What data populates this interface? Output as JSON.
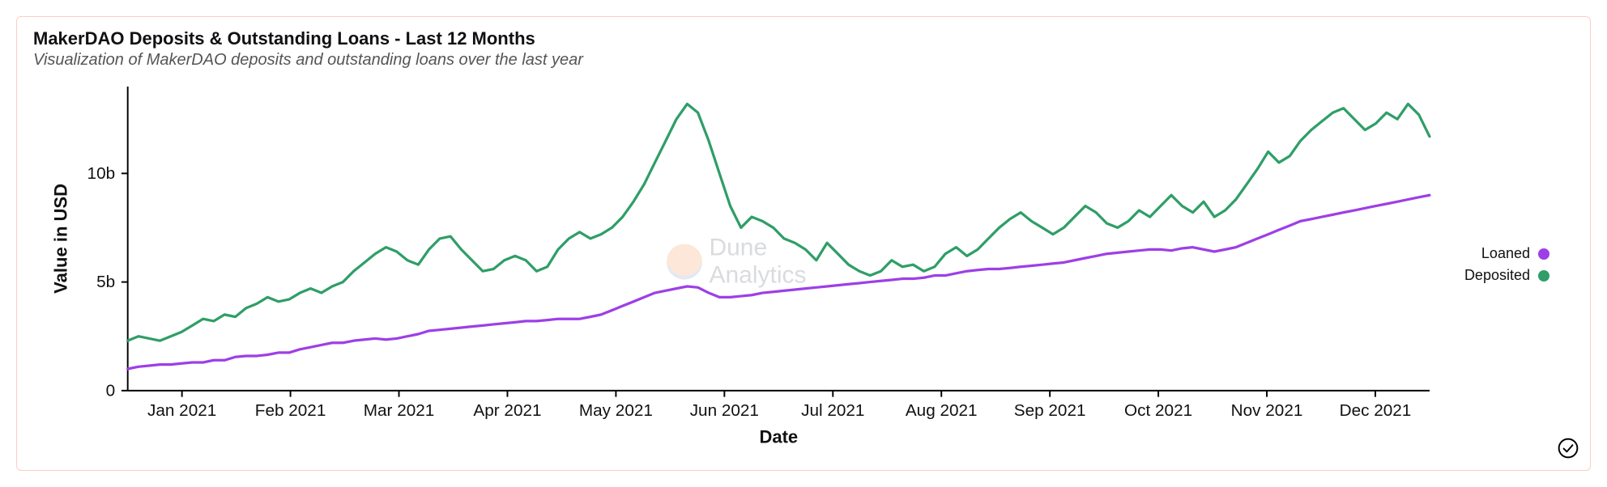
{
  "card": {
    "title": "MakerDAO Deposits & Outstanding Loans - Last 12 Months",
    "subtitle": "Visualization of MakerDAO deposits and outstanding loans over the last year",
    "border_color": "#fecdc6",
    "background_color": "#ffffff"
  },
  "watermark": {
    "text_line1": "Dune",
    "text_line2": "Analytics",
    "logo_top_color": "#f4a26a",
    "logo_bottom_color": "#8ea8d8"
  },
  "chart": {
    "type": "line",
    "x_label": "Date",
    "y_label": "Value in USD",
    "title_fontsize": 22,
    "subtitle_fontsize": 20,
    "label_fontsize": 17,
    "tick_fontsize": 16,
    "background_color": "#ffffff",
    "axis_color": "#000000",
    "line_width": 2.5,
    "y_axis": {
      "min": 0,
      "max": 14,
      "ticks": [
        0,
        5,
        10
      ],
      "tick_labels": [
        "0",
        "5b",
        "10b"
      ]
    },
    "x_axis": {
      "tick_positions": [
        0.5,
        1.5,
        2.5,
        3.5,
        4.5,
        5.5,
        6.5,
        7.5,
        8.5,
        9.5,
        10.5,
        11.5
      ],
      "tick_labels": [
        "Jan 2021",
        "Feb 2021",
        "Mar 2021",
        "Apr 2021",
        "May 2021",
        "Jun 2021",
        "Jul 2021",
        "Aug 2021",
        "Sep 2021",
        "Oct 2021",
        "Nov 2021",
        "Dec 2021"
      ]
    },
    "series": [
      {
        "name": "Loaned",
        "color": "#9d3fe7",
        "data": [
          1.0,
          1.1,
          1.15,
          1.2,
          1.2,
          1.25,
          1.3,
          1.3,
          1.4,
          1.4,
          1.55,
          1.6,
          1.6,
          1.65,
          1.75,
          1.75,
          1.9,
          2.0,
          2.1,
          2.2,
          2.2,
          2.3,
          2.35,
          2.4,
          2.35,
          2.4,
          2.5,
          2.6,
          2.75,
          2.8,
          2.85,
          2.9,
          2.95,
          3.0,
          3.05,
          3.1,
          3.15,
          3.2,
          3.2,
          3.25,
          3.3,
          3.3,
          3.3,
          3.4,
          3.5,
          3.7,
          3.9,
          4.1,
          4.3,
          4.5,
          4.6,
          4.7,
          4.8,
          4.75,
          4.5,
          4.3,
          4.3,
          4.35,
          4.4,
          4.5,
          4.55,
          4.6,
          4.65,
          4.7,
          4.75,
          4.8,
          4.85,
          4.9,
          4.95,
          5.0,
          5.05,
          5.1,
          5.15,
          5.15,
          5.2,
          5.3,
          5.3,
          5.4,
          5.5,
          5.55,
          5.6,
          5.6,
          5.65,
          5.7,
          5.75,
          5.8,
          5.85,
          5.9,
          6.0,
          6.1,
          6.2,
          6.3,
          6.35,
          6.4,
          6.45,
          6.5,
          6.5,
          6.45,
          6.55,
          6.6,
          6.5,
          6.4,
          6.5,
          6.6,
          6.8,
          7.0,
          7.2,
          7.4,
          7.6,
          7.8,
          7.9,
          8.0,
          8.1,
          8.2,
          8.3,
          8.4,
          8.5,
          8.6,
          8.7,
          8.8,
          8.9,
          9.0
        ]
      },
      {
        "name": "Deposited",
        "color": "#2f9e67",
        "data": [
          2.3,
          2.5,
          2.4,
          2.3,
          2.5,
          2.7,
          3.0,
          3.3,
          3.2,
          3.5,
          3.4,
          3.8,
          4.0,
          4.3,
          4.1,
          4.2,
          4.5,
          4.7,
          4.5,
          4.8,
          5.0,
          5.5,
          5.9,
          6.3,
          6.6,
          6.4,
          6.0,
          5.8,
          6.5,
          7.0,
          7.1,
          6.5,
          6.0,
          5.5,
          5.6,
          6.0,
          6.2,
          6.0,
          5.5,
          5.7,
          6.5,
          7.0,
          7.3,
          7.0,
          7.2,
          7.5,
          8.0,
          8.7,
          9.5,
          10.5,
          11.5,
          12.5,
          13.2,
          12.8,
          11.5,
          10.0,
          8.5,
          7.5,
          8.0,
          7.8,
          7.5,
          7.0,
          6.8,
          6.5,
          6.0,
          6.8,
          6.3,
          5.8,
          5.5,
          5.3,
          5.5,
          6.0,
          5.7,
          5.8,
          5.5,
          5.7,
          6.3,
          6.6,
          6.2,
          6.5,
          7.0,
          7.5,
          7.9,
          8.2,
          7.8,
          7.5,
          7.2,
          7.5,
          8.0,
          8.5,
          8.2,
          7.7,
          7.5,
          7.8,
          8.3,
          8.0,
          8.5,
          9.0,
          8.5,
          8.2,
          8.7,
          8.0,
          8.3,
          8.8,
          9.5,
          10.2,
          11.0,
          10.5,
          10.8,
          11.5,
          12.0,
          12.4,
          12.8,
          13.0,
          12.5,
          12.0,
          12.3,
          12.8,
          12.5,
          13.2,
          12.7,
          11.7
        ]
      }
    ]
  },
  "legend": {
    "items": [
      {
        "label": "Loaned",
        "color": "#9d3fe7"
      },
      {
        "label": "Deposited",
        "color": "#2f9e67"
      }
    ]
  },
  "check_icon": {
    "stroke": "#000000"
  }
}
